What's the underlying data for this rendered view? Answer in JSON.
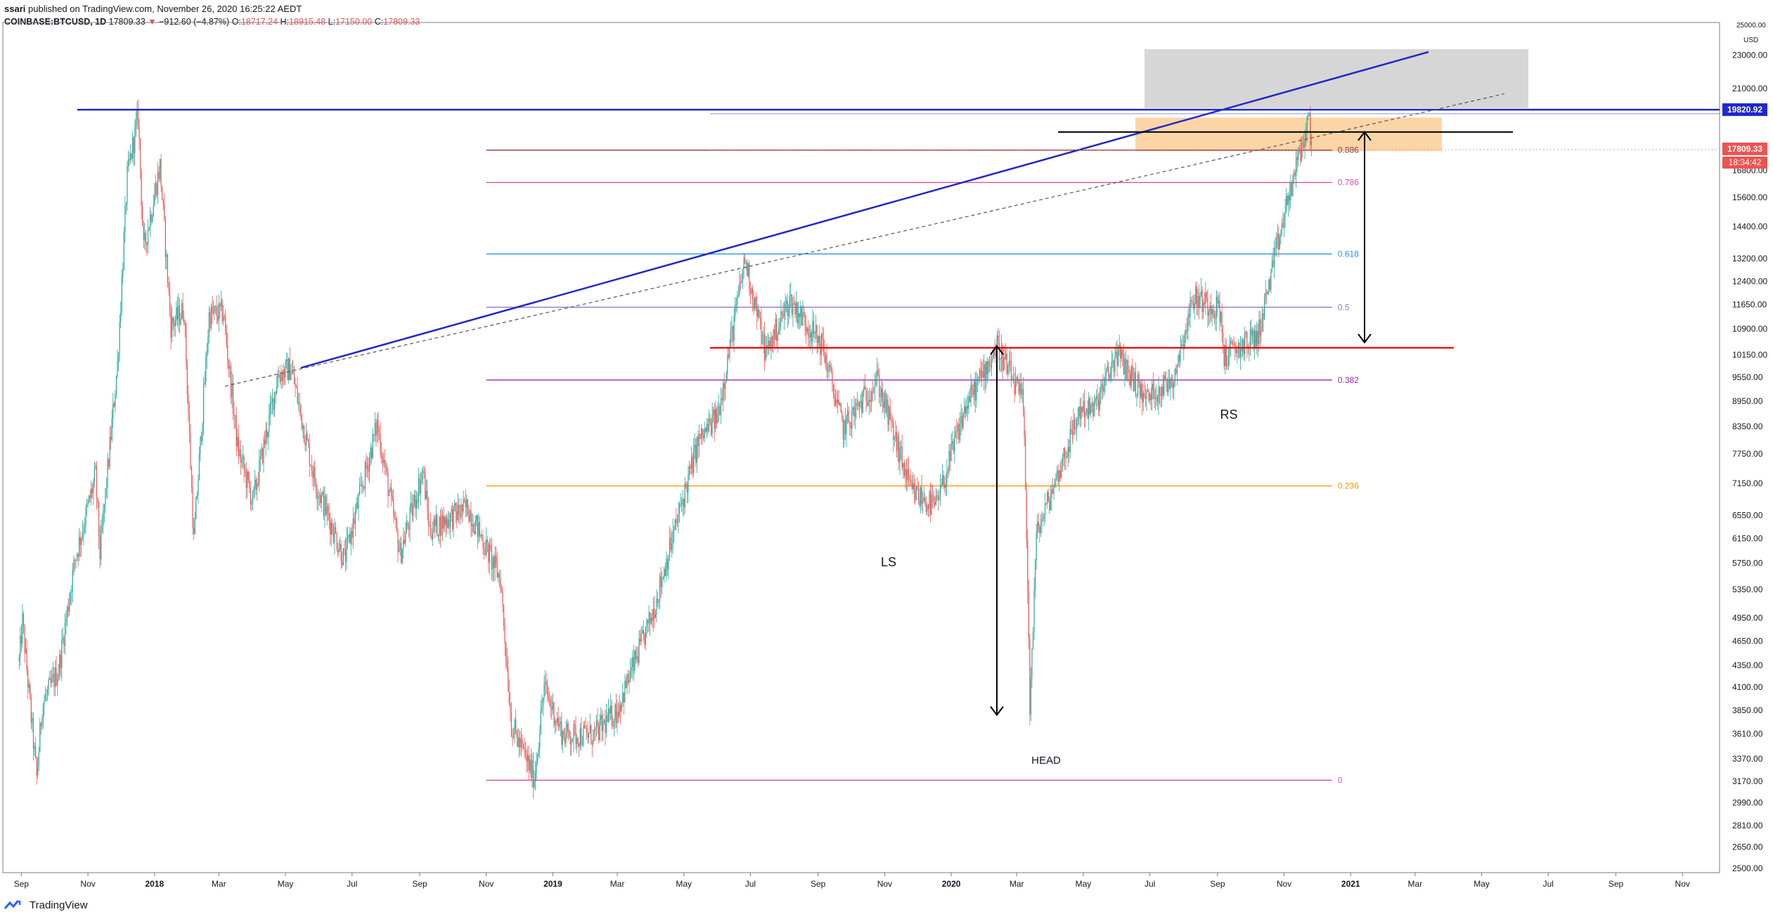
{
  "header": {
    "author": "ssari",
    "published": "published on TradingView.com, November 26, 2020 16:25:22 AEDT",
    "symbol": "COINBASE:BTCUSD, 1D",
    "last": "17809.33",
    "change_arrow": "▼",
    "change": "−912.60 (−4.87%)",
    "o_label": "O:",
    "o": "18717.24",
    "h_label": "H:",
    "h": "18915.48",
    "l_label": "L:",
    "l": "17150.00",
    "c_label": "C:",
    "c": "17809.33"
  },
  "footer": {
    "brand": "TradingView",
    "icon": "tradingview-logo-icon"
  },
  "colors": {
    "up": "#26a69a",
    "down": "#ef5350",
    "trend": "#1f28c8",
    "neck": "#ff0000",
    "fib_886": "#8b3a3a",
    "fib_786": "#e04fa0",
    "fib_618": "#2196f3",
    "fib_5": "#9575cd",
    "fib_382": "#9c27b0",
    "fib_236": "#ff9800",
    "fib_0": "#e04fa0",
    "zone": "#f9b25e",
    "gray_zone": "#c8c8c8"
  },
  "chart_data": {
    "type": "candlestick",
    "symbol": "COINBASE:BTCUSD",
    "interval": "1D",
    "y_scale": "log",
    "ylim": [
      2500,
      25000
    ],
    "x_ticks": [
      "Sep",
      "Nov",
      "2018",
      "Mar",
      "May",
      "Jul",
      "Sep",
      "Nov",
      "2019",
      "Mar",
      "May",
      "Jul",
      "Sep",
      "Nov",
      "2020",
      "Mar",
      "May",
      "Jul",
      "Sep",
      "Nov",
      "2021",
      "Mar",
      "May",
      "Jul",
      "Sep",
      "Nov"
    ],
    "y_ticks": [
      "25000.00",
      "23000.00",
      "21000.00",
      "19820.92",
      "17809.33",
      "16800.00",
      "15600.00",
      "14400.00",
      "13200.00",
      "12400.00",
      "11650.00",
      "10900.00",
      "10150.00",
      "9550.00",
      "8950.00",
      "8350.00",
      "7750.00",
      "7150.00",
      "6550.00",
      "6150.00",
      "5750.00",
      "5350.00",
      "4950.00",
      "4650.00",
      "4350.00",
      "4100.00",
      "3850.00",
      "3610.00",
      "3370.00",
      "3170.00",
      "2990.00",
      "2810.00",
      "2650.00",
      "2500.00"
    ],
    "y_axis_unit": "USD",
    "price_labels": {
      "resistance": "19820.92",
      "last": "17809.33",
      "countdown": "18:34:42"
    },
    "fib_levels": [
      {
        "label": "0.886",
        "value": 17750
      },
      {
        "label": "0.786",
        "value": 16250
      },
      {
        "label": "0.618",
        "value": 13370
      },
      {
        "label": "0.5",
        "value": 11560
      },
      {
        "label": "0.382",
        "value": 9480
      },
      {
        "label": "0.236",
        "value": 7100
      },
      {
        "label": "0",
        "value": 3180
      }
    ],
    "annotations": [
      "LS",
      "HEAD",
      "RS"
    ],
    "price_path": [
      [
        "2017-08-30",
        4400
      ],
      [
        "2017-09-02",
        4900
      ],
      [
        "2017-09-15",
        3200
      ],
      [
        "2017-09-20",
        3900
      ],
      [
        "2017-10-05",
        4300
      ],
      [
        "2017-10-20",
        5800
      ],
      [
        "2017-11-08",
        7300
      ],
      [
        "2017-11-12",
        5900
      ],
      [
        "2017-11-28",
        9900
      ],
      [
        "2017-12-07",
        16500
      ],
      [
        "2017-12-17",
        19500
      ],
      [
        "2017-12-22",
        13500
      ],
      [
        "2018-01-06",
        17000
      ],
      [
        "2018-01-16",
        11000
      ],
      [
        "2018-01-28",
        11500
      ],
      [
        "2018-02-06",
        6100
      ],
      [
        "2018-02-20",
        11300
      ],
      [
        "2018-03-05",
        11400
      ],
      [
        "2018-03-18",
        7900
      ],
      [
        "2018-04-01",
        6800
      ],
      [
        "2018-04-24",
        9600
      ],
      [
        "2018-05-06",
        9800
      ],
      [
        "2018-05-28",
        7200
      ],
      [
        "2018-06-24",
        5800
      ],
      [
        "2018-07-24",
        8400
      ],
      [
        "2018-08-14",
        5900
      ],
      [
        "2018-09-04",
        7400
      ],
      [
        "2018-09-10",
        6300
      ],
      [
        "2018-10-15",
        6700
      ],
      [
        "2018-11-14",
        5500
      ],
      [
        "2018-11-24",
        3700
      ],
      [
        "2018-12-15",
        3200
      ],
      [
        "2018-12-24",
        4100
      ],
      [
        "2019-01-10",
        3600
      ],
      [
        "2019-02-08",
        3600
      ],
      [
        "2019-03-01",
        3850
      ],
      [
        "2019-04-02",
        5000
      ],
      [
        "2019-05-14",
        8000
      ],
      [
        "2019-06-01",
        8600
      ],
      [
        "2019-06-26",
        13200
      ],
      [
        "2019-07-15",
        10200
      ],
      [
        "2019-08-06",
        11800
      ],
      [
        "2019-09-05",
        10400
      ],
      [
        "2019-09-24",
        8300
      ],
      [
        "2019-10-25",
        9500
      ],
      [
        "2019-11-25",
        7000
      ],
      [
        "2019-12-18",
        6700
      ],
      [
        "2020-01-14",
        8800
      ],
      [
        "2020-02-12",
        10400
      ],
      [
        "2020-03-07",
        8900
      ],
      [
        "2020-03-12",
        4800
      ],
      [
        "2020-03-13",
        3850
      ],
      [
        "2020-03-19",
        6200
      ],
      [
        "2020-04-29",
        8800
      ],
      [
        "2020-05-10",
        8700
      ],
      [
        "2020-06-01",
        10200
      ],
      [
        "2020-06-27",
        9000
      ],
      [
        "2020-07-22",
        9500
      ],
      [
        "2020-08-10",
        11900
      ],
      [
        "2020-09-03",
        11500
      ],
      [
        "2020-09-07",
        10100
      ],
      [
        "2020-10-08",
        10700
      ],
      [
        "2020-10-21",
        12800
      ],
      [
        "2020-11-05",
        15600
      ],
      [
        "2020-11-24",
        19400
      ],
      [
        "2020-11-26",
        17809.33
      ]
    ]
  }
}
